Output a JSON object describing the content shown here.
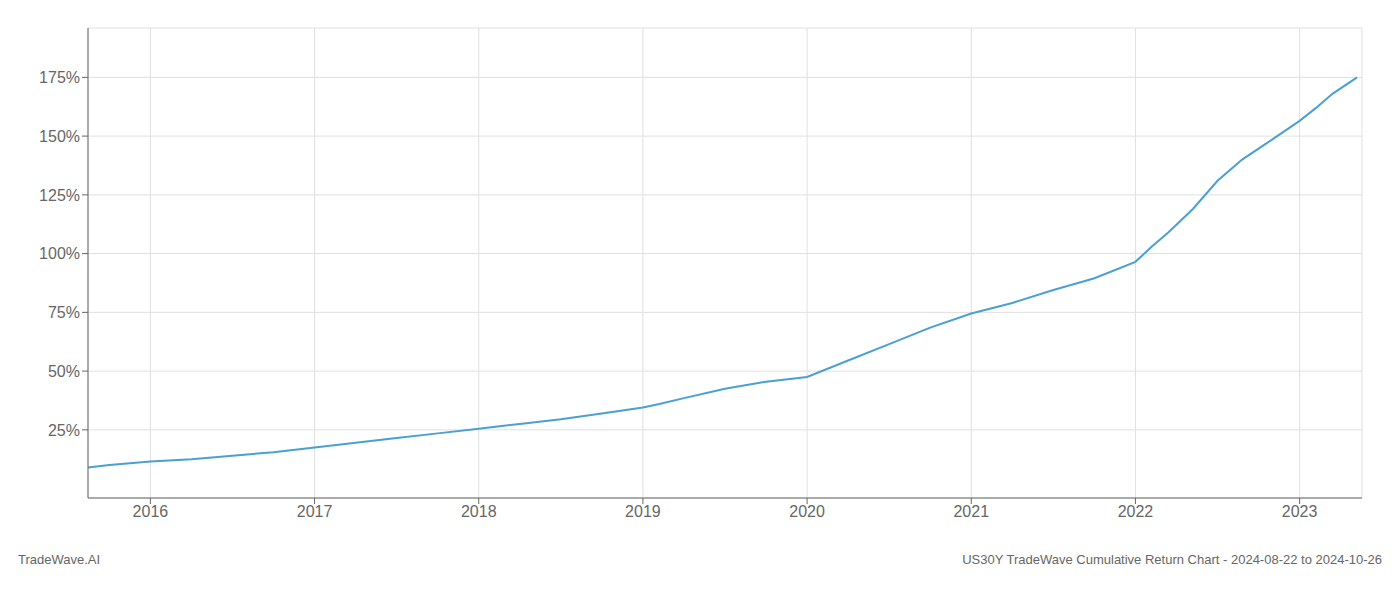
{
  "chart_data": {
    "type": "line",
    "title": "US30Y TradeWave Cumulative Return Chart - 2024-08-22 to 2024-10-26",
    "annotations": [
      "TradeWave.AI"
    ],
    "x": [
      2015.62,
      2015.75,
      2016.0,
      2016.25,
      2016.5,
      2016.75,
      2017.0,
      2017.25,
      2017.5,
      2017.75,
      2018.0,
      2018.25,
      2018.5,
      2018.75,
      2019.0,
      2019.1,
      2019.25,
      2019.5,
      2019.75,
      2020.0,
      2020.25,
      2020.5,
      2020.75,
      2021.0,
      2021.25,
      2021.5,
      2021.65,
      2021.75,
      2022.0,
      2022.1,
      2022.2,
      2022.35,
      2022.5,
      2022.65,
      2022.8,
      2023.0,
      2023.1,
      2023.2,
      2023.35
    ],
    "values": [
      0.09,
      0.1,
      0.115,
      0.125,
      0.14,
      0.155,
      0.175,
      0.195,
      0.215,
      0.235,
      0.255,
      0.275,
      0.295,
      0.32,
      0.345,
      0.36,
      0.385,
      0.425,
      0.455,
      0.475,
      0.545,
      0.615,
      0.685,
      0.745,
      0.79,
      0.845,
      0.875,
      0.895,
      0.965,
      1.03,
      1.09,
      1.19,
      1.31,
      1.4,
      1.47,
      1.565,
      1.62,
      1.68,
      1.75
    ],
    "color": "#4a9fd4",
    "xlim": [
      2015.62,
      2023.38
    ],
    "xticks": [
      2016,
      2017,
      2018,
      2019,
      2020,
      2021,
      2022,
      2023
    ],
    "ylim": [
      -0.04,
      1.96
    ],
    "yticks": [
      {
        "value": 0.25,
        "label": "25%"
      },
      {
        "value": 0.5,
        "label": "50%"
      },
      {
        "value": 0.75,
        "label": "75%"
      },
      {
        "value": 1.0,
        "label": "100%"
      },
      {
        "value": 1.25,
        "label": "125%"
      },
      {
        "value": 1.5,
        "label": "150%"
      },
      {
        "value": 1.75,
        "label": "175%"
      }
    ],
    "grid": true
  }
}
